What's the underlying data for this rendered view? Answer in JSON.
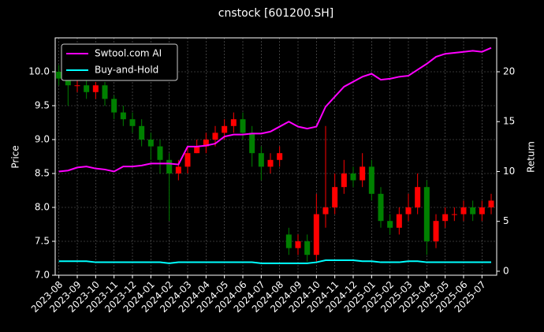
{
  "chart_data": {
    "type": "candlestick",
    "title": "cnstock [601200.SH]",
    "ylabel": "Price",
    "y2label": "Return",
    "x": [
      0,
      0.5,
      1,
      1.5,
      2,
      2.5,
      3,
      3.5,
      4,
      4.5,
      5,
      5.5,
      6,
      6.5,
      7,
      7.5,
      8,
      8.5,
      9,
      9.5,
      10,
      10.5,
      11,
      11.5,
      12,
      12.5,
      13,
      13.5,
      14,
      14.5,
      15,
      15.5,
      16,
      16.5,
      17,
      17.5,
      18,
      18.5,
      19,
      19.5,
      20,
      20.5,
      21,
      21.5,
      22,
      22.5,
      23,
      23.5
    ],
    "open": [
      10.0,
      9.9,
      9.8,
      9.8,
      9.7,
      9.8,
      9.6,
      9.4,
      9.3,
      9.2,
      9.0,
      8.9,
      8.7,
      8.5,
      8.6,
      8.8,
      8.9,
      9.0,
      9.1,
      9.2,
      9.3,
      9.1,
      8.8,
      8.6,
      8.7,
      7.6,
      7.4,
      7.5,
      7.3,
      7.9,
      8.0,
      8.3,
      8.5,
      8.4,
      8.6,
      8.2,
      7.8,
      7.7,
      7.9,
      8.0,
      8.3,
      7.5,
      7.8,
      7.9,
      7.9,
      8.0,
      7.9,
      8.0
    ],
    "high": [
      10.1,
      10.0,
      9.95,
      9.9,
      9.85,
      9.85,
      9.65,
      9.5,
      9.4,
      9.3,
      9.1,
      9.0,
      8.8,
      8.7,
      8.9,
      9.0,
      9.1,
      9.2,
      9.3,
      9.4,
      9.4,
      9.2,
      8.9,
      8.8,
      8.9,
      7.7,
      7.6,
      7.6,
      8.2,
      9.2,
      8.5,
      8.7,
      8.6,
      8.8,
      8.7,
      8.3,
      7.9,
      8.0,
      8.2,
      8.5,
      8.4,
      7.9,
      8.0,
      8.0,
      8.1,
      8.1,
      8.1,
      8.2
    ],
    "low": [
      9.8,
      9.5,
      9.7,
      9.6,
      9.6,
      9.5,
      9.3,
      9.2,
      9.1,
      8.9,
      8.7,
      8.5,
      7.8,
      8.4,
      8.5,
      8.8,
      8.8,
      8.9,
      9.0,
      9.1,
      9.0,
      8.6,
      8.4,
      8.5,
      8.6,
      7.3,
      7.3,
      7.2,
      7.2,
      7.7,
      7.9,
      8.2,
      8.3,
      8.3,
      8.1,
      7.7,
      7.6,
      7.6,
      7.8,
      7.9,
      7.3,
      7.4,
      7.7,
      7.8,
      7.8,
      7.8,
      7.8,
      7.9
    ],
    "close": [
      9.9,
      9.8,
      9.8,
      9.7,
      9.8,
      9.6,
      9.4,
      9.3,
      9.2,
      9.0,
      8.9,
      8.7,
      8.5,
      8.6,
      8.8,
      8.9,
      9.0,
      9.1,
      9.2,
      9.3,
      9.1,
      8.8,
      8.6,
      8.7,
      8.8,
      7.4,
      7.5,
      7.3,
      7.9,
      8.0,
      8.3,
      8.5,
      8.4,
      8.6,
      8.2,
      7.8,
      7.7,
      7.9,
      8.0,
      8.3,
      7.5,
      7.8,
      7.9,
      7.9,
      8.0,
      7.9,
      8.0,
      8.1
    ],
    "up_color": "#ff0000",
    "down_color": "#008000",
    "series": [
      {
        "name": "Swtool.com AI",
        "color": "#ff00ff",
        "axis": "y2",
        "values": [
          10.0,
          10.1,
          10.4,
          10.5,
          10.3,
          10.2,
          10.0,
          10.5,
          10.5,
          10.6,
          10.8,
          10.8,
          10.8,
          10.7,
          12.5,
          12.5,
          12.6,
          12.8,
          13.5,
          13.7,
          13.7,
          13.8,
          13.8,
          14.0,
          14.5,
          15.0,
          14.5,
          14.3,
          14.5,
          16.5,
          17.5,
          18.5,
          19.0,
          19.5,
          19.8,
          19.2,
          19.3,
          19.5,
          19.6,
          20.2,
          20.8,
          21.5,
          21.8,
          21.9,
          22.0,
          22.1,
          22.0,
          22.4
        ]
      },
      {
        "name": "Buy-and-Hold",
        "color": "#00ffff",
        "axis": "y2",
        "values": [
          1.0,
          1.0,
          1.0,
          1.0,
          0.9,
          0.9,
          0.9,
          0.9,
          0.9,
          0.9,
          0.9,
          0.9,
          0.8,
          0.9,
          0.9,
          0.9,
          0.9,
          0.9,
          0.9,
          0.9,
          0.9,
          0.9,
          0.8,
          0.8,
          0.8,
          0.8,
          0.8,
          0.8,
          0.9,
          1.1,
          1.1,
          1.1,
          1.1,
          1.0,
          1.0,
          0.9,
          0.9,
          0.9,
          1.0,
          1.0,
          0.9,
          0.9,
          0.9,
          0.9,
          0.9,
          0.9,
          0.9,
          0.9
        ]
      }
    ],
    "xlim": [
      -0.2,
      23.8
    ],
    "xticks": [
      {
        "value": 0,
        "label": "2023-08"
      },
      {
        "value": 1,
        "label": "2023-09"
      },
      {
        "value": 2,
        "label": "2023-10"
      },
      {
        "value": 3,
        "label": "2023-11"
      },
      {
        "value": 4,
        "label": "2023-12"
      },
      {
        "value": 5,
        "label": "2024-01"
      },
      {
        "value": 6,
        "label": "2024-02"
      },
      {
        "value": 7,
        "label": "2024-03"
      },
      {
        "value": 8,
        "label": "2024-04"
      },
      {
        "value": 9,
        "label": "2024-05"
      },
      {
        "value": 10,
        "label": "2024-06"
      },
      {
        "value": 11,
        "label": "2024-07"
      },
      {
        "value": 12,
        "label": "2024-08"
      },
      {
        "value": 13,
        "label": "2024-09"
      },
      {
        "value": 14,
        "label": "2024-10"
      },
      {
        "value": 15,
        "label": "2024-11"
      },
      {
        "value": 16,
        "label": "2024-12"
      },
      {
        "value": 17,
        "label": "2025-01"
      },
      {
        "value": 18,
        "label": "2025-02"
      },
      {
        "value": 19,
        "label": "2025-03"
      },
      {
        "value": 20,
        "label": "2025-04"
      },
      {
        "value": 21,
        "label": "2025-05"
      },
      {
        "value": 22,
        "label": "2025-06"
      },
      {
        "value": 23,
        "label": "2025-07"
      }
    ],
    "ylim": [
      7.0,
      10.5
    ],
    "yticks": [
      {
        "value": 7,
        "label": "7.0"
      },
      {
        "value": 7.5,
        "label": "7.5"
      },
      {
        "value": 8,
        "label": "8.0"
      },
      {
        "value": 8.5,
        "label": "8.5"
      },
      {
        "value": 9,
        "label": "9.0"
      },
      {
        "value": 9.5,
        "label": "9.5"
      },
      {
        "value": 10,
        "label": "10.0"
      }
    ],
    "y2lim": [
      -0.4,
      23.4
    ],
    "y2ticks": [
      0,
      5,
      10,
      15,
      20
    ],
    "grid": true,
    "legend": "upper left"
  }
}
